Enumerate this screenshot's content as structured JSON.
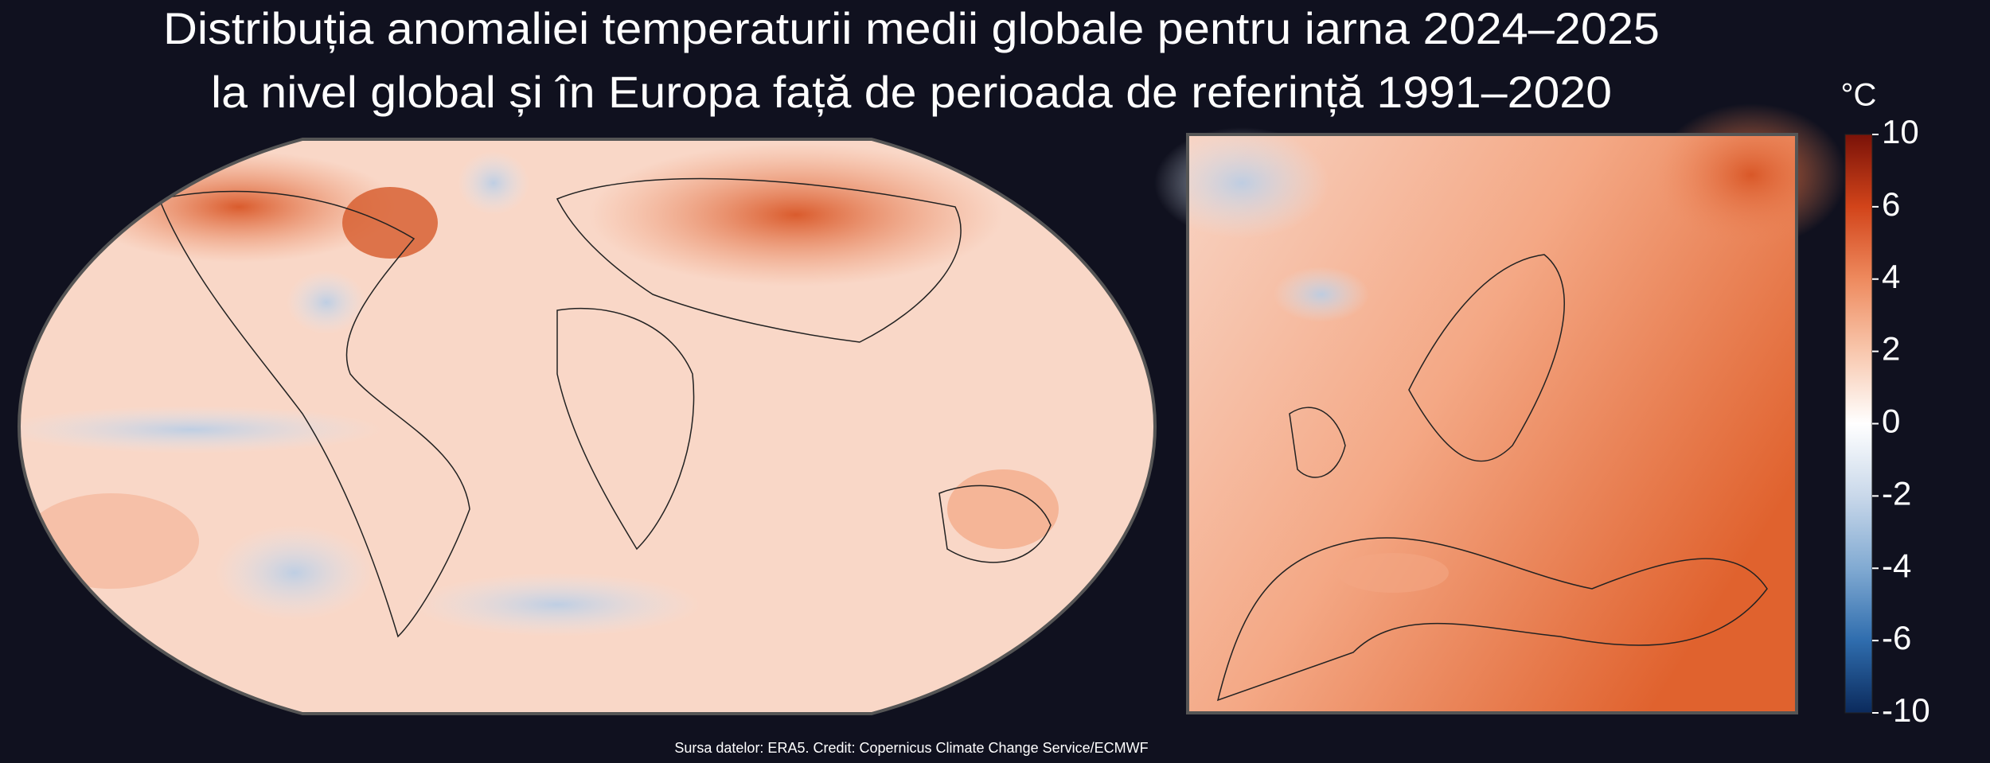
{
  "header": {
    "title_line1": "Distribuția anomaliei temperaturii medii globale pentru iarna 2024–2025",
    "title_line2": "la nivel global și în Europa față de perioada de referință 1991–2020"
  },
  "colorbar": {
    "unit": "°C",
    "ticks": [
      10,
      6,
      4,
      2,
      0,
      -2,
      -4,
      -6,
      -10
    ]
  },
  "footer": {
    "source": "Sursa datelor: ERA5. Credit: Copernicus Climate Change Service/ECMWF"
  }
}
